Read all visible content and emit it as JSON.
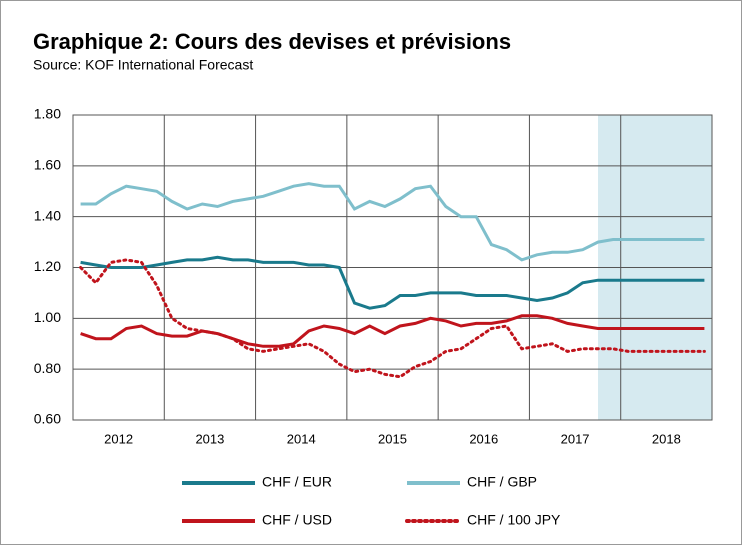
{
  "chart_data": {
    "type": "line",
    "title": "Graphique 2: Cours des devises et prévisions",
    "subtitle": "Source: KOF International Forecast",
    "categories": [
      null,
      null,
      null,
      "2012",
      null,
      null,
      null,
      null,
      null,
      "2013",
      null,
      null,
      null,
      null,
      null,
      "2014",
      null,
      null,
      null,
      null,
      null,
      "2015",
      null,
      null,
      null,
      null,
      null,
      "2016",
      null,
      null,
      null,
      null,
      null,
      "2017",
      null,
      null,
      null,
      null,
      null,
      "2018",
      null,
      null
    ],
    "series": [
      {
        "name": "CHF / EUR",
        "color": "#1a7a8c",
        "dotted": false,
        "values": [
          1.22,
          1.21,
          1.2,
          1.2,
          1.2,
          1.21,
          1.22,
          1.23,
          1.23,
          1.24,
          1.23,
          1.23,
          1.22,
          1.22,
          1.22,
          1.21,
          1.21,
          1.2,
          1.06,
          1.04,
          1.05,
          1.09,
          1.09,
          1.1,
          1.1,
          1.1,
          1.09,
          1.09,
          1.09,
          1.08,
          1.07,
          1.08,
          1.1,
          1.14,
          1.15,
          1.15,
          1.15,
          1.15,
          1.15,
          1.15,
          1.15,
          1.15
        ]
      },
      {
        "name": "CHF / GBP",
        "color": "#7fbfcc",
        "dotted": false,
        "values": [
          1.45,
          1.45,
          1.49,
          1.52,
          1.51,
          1.5,
          1.46,
          1.43,
          1.45,
          1.44,
          1.46,
          1.47,
          1.48,
          1.5,
          1.52,
          1.53,
          1.52,
          1.52,
          1.43,
          1.46,
          1.44,
          1.47,
          1.51,
          1.52,
          1.44,
          1.4,
          1.4,
          1.29,
          1.27,
          1.23,
          1.25,
          1.26,
          1.26,
          1.27,
          1.3,
          1.31,
          1.31,
          1.31,
          1.31,
          1.31,
          1.31,
          1.31
        ]
      },
      {
        "name": "CHF / USD",
        "color": "#c0141c",
        "dotted": false,
        "values": [
          0.94,
          0.92,
          0.92,
          0.96,
          0.97,
          0.94,
          0.93,
          0.93,
          0.95,
          0.94,
          0.92,
          0.9,
          0.89,
          0.89,
          0.9,
          0.95,
          0.97,
          0.96,
          0.94,
          0.97,
          0.94,
          0.97,
          0.98,
          1.0,
          0.99,
          0.97,
          0.98,
          0.98,
          0.99,
          1.01,
          1.01,
          1.0,
          0.98,
          0.97,
          0.96,
          0.96,
          0.96,
          0.96,
          0.96,
          0.96,
          0.96,
          0.96
        ]
      },
      {
        "name": "CHF / 100 JPY",
        "color": "#c0141c",
        "dotted": true,
        "values": [
          1.2,
          1.14,
          1.22,
          1.23,
          1.22,
          1.13,
          1.0,
          0.96,
          0.95,
          0.94,
          0.92,
          0.88,
          0.87,
          0.88,
          0.89,
          0.9,
          0.87,
          0.82,
          0.79,
          0.8,
          0.78,
          0.77,
          0.81,
          0.83,
          0.87,
          0.88,
          0.92,
          0.96,
          0.97,
          0.88,
          0.89,
          0.9,
          0.87,
          0.88,
          0.88,
          0.88,
          0.87,
          0.87,
          0.87,
          0.87,
          0.87,
          0.87
        ]
      }
    ],
    "ylim": [
      0.6,
      1.8
    ],
    "yticks": [
      {
        "value": 0.6,
        "label": "0.60"
      },
      {
        "value": 0.8,
        "label": "0.80"
      },
      {
        "value": 1.0,
        "label": "1.00"
      },
      {
        "value": 1.2,
        "label": "1.20"
      },
      {
        "value": 1.4,
        "label": "1.40"
      },
      {
        "value": 1.6,
        "label": "1.60"
      },
      {
        "value": 1.8,
        "label": "1.80"
      }
    ],
    "grid": true
  }
}
